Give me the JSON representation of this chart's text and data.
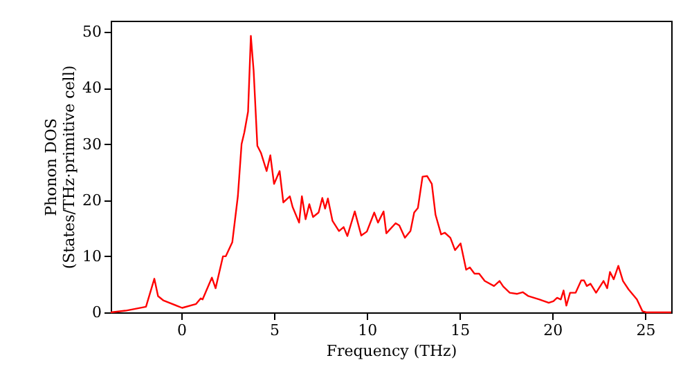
{
  "chart_data": {
    "type": "line",
    "xlabel": "Frequency (THz)",
    "ylabel": "Phonon DOS\n(States/THz·primitive cell)",
    "xlim": [
      -3.8,
      26.4
    ],
    "ylim": [
      0,
      52
    ],
    "xticks": [
      0,
      5,
      10,
      15,
      20,
      25
    ],
    "yticks": [
      0,
      10,
      20,
      30,
      40,
      50
    ],
    "grid": false,
    "series": [
      {
        "color": "#ff0000",
        "x": [
          -3.8,
          -3.0,
          -1.9,
          -1.45,
          -1.25,
          -0.95,
          0.05,
          0.8,
          1.05,
          1.15,
          1.65,
          1.85,
          2.25,
          2.4,
          2.75,
          3.05,
          3.25,
          3.4,
          3.6,
          3.75,
          3.9,
          4.1,
          4.3,
          4.6,
          4.8,
          5.0,
          5.3,
          5.5,
          5.85,
          6.0,
          6.35,
          6.5,
          6.7,
          6.9,
          7.1,
          7.4,
          7.6,
          7.75,
          7.9,
          8.15,
          8.5,
          8.75,
          8.95,
          9.35,
          9.7,
          10.0,
          10.4,
          10.6,
          10.9,
          11.05,
          11.55,
          11.75,
          12.05,
          12.35,
          12.55,
          12.75,
          13.0,
          13.25,
          13.5,
          13.7,
          14.0,
          14.2,
          14.5,
          14.75,
          15.05,
          15.35,
          15.55,
          15.8,
          16.05,
          16.35,
          16.85,
          17.15,
          17.35,
          17.7,
          18.1,
          18.4,
          18.7,
          19.3,
          19.8,
          20.05,
          20.25,
          20.45,
          20.6,
          20.75,
          20.95,
          21.25,
          21.55,
          21.7,
          21.85,
          22.05,
          22.35,
          22.75,
          22.95,
          23.1,
          23.3,
          23.55,
          23.8,
          24.1,
          24.55,
          24.85,
          25.05,
          26.4
        ],
        "values": [
          0,
          0.3,
          1.0,
          6.0,
          2.9,
          2.1,
          0.8,
          1.5,
          2.5,
          2.3,
          6.2,
          4.3,
          10.0,
          10.0,
          12.5,
          20.7,
          30.0,
          32.1,
          35.8,
          49.3,
          43.1,
          29.7,
          28.4,
          25.2,
          28.0,
          22.9,
          25.2,
          19.6,
          20.7,
          18.8,
          16.0,
          20.7,
          16.6,
          19.3,
          17.0,
          17.8,
          20.4,
          18.5,
          20.3,
          16.3,
          14.5,
          15.2,
          13.6,
          18.0,
          13.7,
          14.4,
          17.8,
          16.0,
          18.0,
          14.1,
          15.9,
          15.5,
          13.3,
          14.5,
          17.8,
          18.6,
          24.2,
          24.3,
          22.9,
          17.4,
          13.9,
          14.2,
          13.3,
          11.1,
          12.3,
          7.6,
          8.0,
          6.9,
          6.9,
          5.6,
          4.7,
          5.6,
          4.6,
          3.5,
          3.3,
          3.6,
          2.9,
          2.3,
          1.7,
          2.0,
          2.6,
          2.3,
          3.9,
          1.2,
          3.5,
          3.5,
          5.7,
          5.7,
          4.7,
          5.1,
          3.5,
          5.6,
          4.3,
          7.2,
          5.9,
          8.3,
          5.6,
          4.1,
          2.3,
          0.2,
          0,
          0
        ]
      }
    ]
  }
}
